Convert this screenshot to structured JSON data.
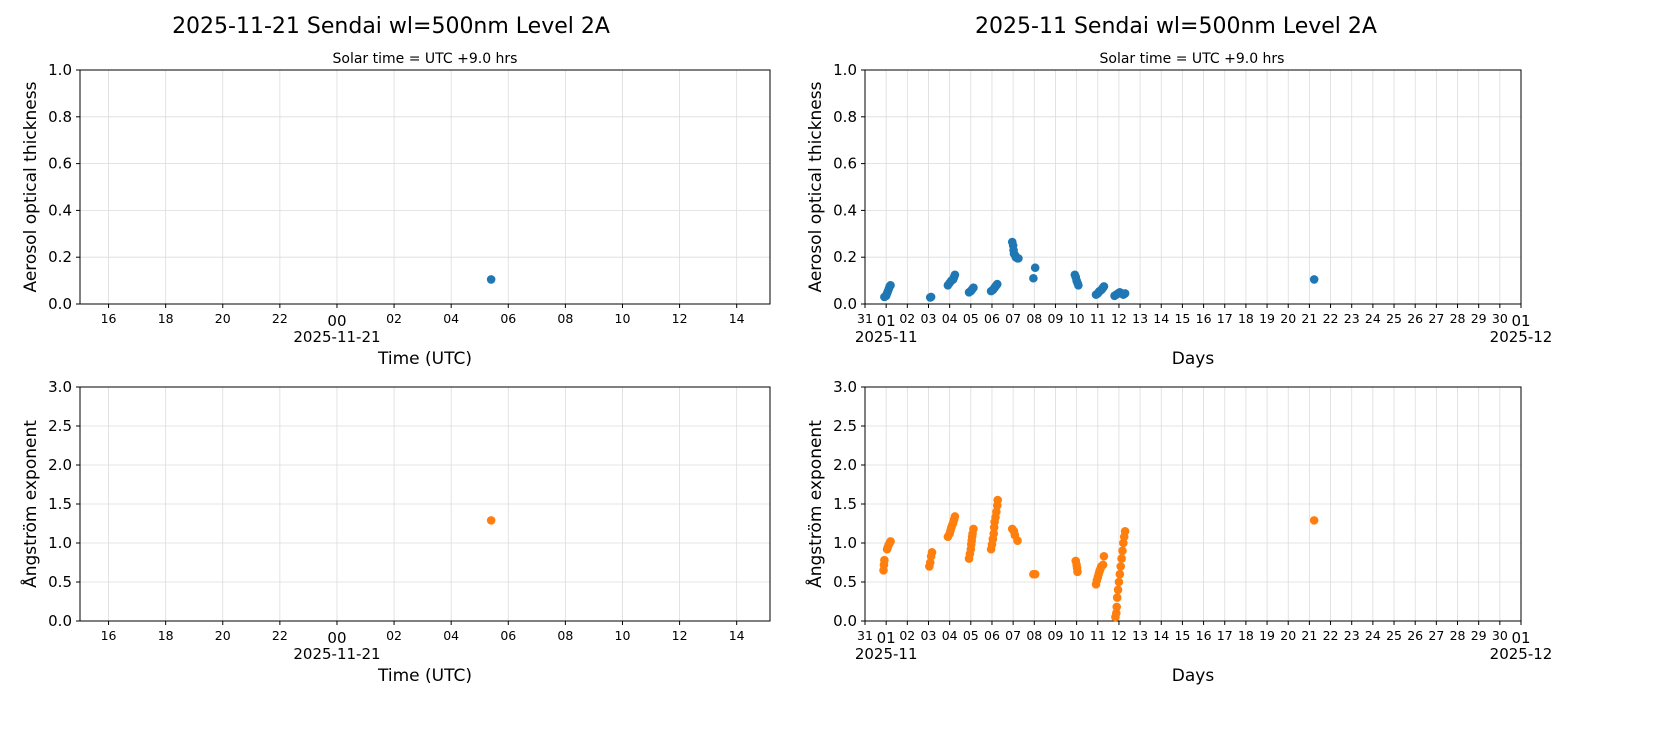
{
  "charts": [
    {
      "title": "2025-11-21  Sendai  wl=500nm  Level 2A",
      "subtitle": "Solar time = UTC +9.0 hrs"
    },
    {
      "title": "2025-11  Sendai  wl=500nm  Level 2A",
      "subtitle": "Solar time = UTC +9.0 hrs"
    }
  ],
  "chart_data": [
    {
      "type": "scatter",
      "panel": "daily-aot",
      "xlabel": "Time (UTC)",
      "ylabel": "Aerosol optical thickness",
      "xlim": [
        "2025-11-20T15:00",
        "2025-11-21T15:10"
      ],
      "ylim": [
        0,
        1.0
      ],
      "yticks": [
        "0.0",
        "0.2",
        "0.4",
        "0.6",
        "0.8",
        "1.0"
      ],
      "xticks": [
        {
          "t": "2025-11-20T16:00",
          "label": "16"
        },
        {
          "t": "2025-11-20T18:00",
          "label": "18"
        },
        {
          "t": "2025-11-20T20:00",
          "label": "20"
        },
        {
          "t": "2025-11-20T22:00",
          "label": "22"
        },
        {
          "t": "2025-11-21T00:00",
          "label": "00",
          "major": true,
          "sublabel": "2025-11-21"
        },
        {
          "t": "2025-11-21T02:00",
          "label": "02"
        },
        {
          "t": "2025-11-21T04:00",
          "label": "04"
        },
        {
          "t": "2025-11-21T06:00",
          "label": "06"
        },
        {
          "t": "2025-11-21T08:00",
          "label": "08"
        },
        {
          "t": "2025-11-21T10:00",
          "label": "10"
        },
        {
          "t": "2025-11-21T12:00",
          "label": "12"
        },
        {
          "t": "2025-11-21T14:00",
          "label": "14"
        }
      ],
      "grid": true,
      "color": "#1f77b4",
      "points": [
        [
          "2025-11-21T05:24",
          0.105
        ]
      ]
    },
    {
      "type": "scatter",
      "panel": "monthly-aot",
      "xlabel": "Days",
      "ylabel": "Aerosol optical thickness",
      "xlim": [
        "2025-10-31T00:00",
        "2025-12-01T00:00"
      ],
      "ylim": [
        0,
        1.0
      ],
      "yticks": [
        "0.0",
        "0.2",
        "0.4",
        "0.6",
        "0.8",
        "1.0"
      ],
      "grid": true,
      "color": "#1f77b4",
      "points": [
        [
          "2025-10-31T22:00",
          0.03
        ],
        [
          "2025-11-01T00:00",
          0.035
        ],
        [
          "2025-11-01T01:00",
          0.045
        ],
        [
          "2025-11-01T02:00",
          0.055
        ],
        [
          "2025-11-01T03:00",
          0.065
        ],
        [
          "2025-11-01T04:00",
          0.075
        ],
        [
          "2025-11-01T05:00",
          0.08
        ],
        [
          "2025-11-03T02:00",
          0.028
        ],
        [
          "2025-11-03T03:00",
          0.03
        ],
        [
          "2025-11-03T22:00",
          0.08
        ],
        [
          "2025-11-04T00:00",
          0.09
        ],
        [
          "2025-11-04T02:00",
          0.1
        ],
        [
          "2025-11-04T04:00",
          0.105
        ],
        [
          "2025-11-04T05:00",
          0.115
        ],
        [
          "2025-11-04T06:00",
          0.125
        ],
        [
          "2025-11-04T22:00",
          0.05
        ],
        [
          "2025-11-05T00:00",
          0.055
        ],
        [
          "2025-11-05T01:00",
          0.06
        ],
        [
          "2025-11-05T02:00",
          0.065
        ],
        [
          "2025-11-05T03:00",
          0.07
        ],
        [
          "2025-11-05T23:00",
          0.055
        ],
        [
          "2025-11-06T01:00",
          0.06
        ],
        [
          "2025-11-06T02:00",
          0.065
        ],
        [
          "2025-11-06T03:00",
          0.07
        ],
        [
          "2025-11-06T04:00",
          0.075
        ],
        [
          "2025-11-06T05:00",
          0.08
        ],
        [
          "2025-11-06T06:00",
          0.085
        ],
        [
          "2025-11-06T23:00",
          0.265
        ],
        [
          "2025-11-07T00:00",
          0.25
        ],
        [
          "2025-11-07T00:30",
          0.23
        ],
        [
          "2025-11-07T01:00",
          0.215
        ],
        [
          "2025-11-07T02:00",
          0.21
        ],
        [
          "2025-11-07T03:00",
          0.2
        ],
        [
          "2025-11-07T05:00",
          0.195
        ],
        [
          "2025-11-07T06:00",
          0.195
        ],
        [
          "2025-11-07T23:00",
          0.11
        ],
        [
          "2025-11-08T01:00",
          0.155
        ],
        [
          "2025-11-09T22:00",
          0.125
        ],
        [
          "2025-11-09T23:00",
          0.115
        ],
        [
          "2025-11-10T00:00",
          0.1
        ],
        [
          "2025-11-10T01:00",
          0.09
        ],
        [
          "2025-11-10T02:00",
          0.08
        ],
        [
          "2025-11-10T22:00",
          0.04
        ],
        [
          "2025-11-11T00:00",
          0.045
        ],
        [
          "2025-11-11T01:00",
          0.05
        ],
        [
          "2025-11-11T02:00",
          0.055
        ],
        [
          "2025-11-11T04:00",
          0.06
        ],
        [
          "2025-11-11T05:00",
          0.065
        ],
        [
          "2025-11-11T06:00",
          0.07
        ],
        [
          "2025-11-11T07:00",
          0.075
        ],
        [
          "2025-11-11T19:00",
          0.035
        ],
        [
          "2025-11-11T21:00",
          0.04
        ],
        [
          "2025-11-11T23:00",
          0.045
        ],
        [
          "2025-11-12T01:00",
          0.05
        ],
        [
          "2025-11-12T03:00",
          0.045
        ],
        [
          "2025-11-12T05:00",
          0.04
        ],
        [
          "2025-11-12T07:00",
          0.045
        ],
        [
          "2025-11-21T05:24",
          0.105
        ]
      ]
    },
    {
      "type": "scatter",
      "panel": "daily-ae",
      "xlabel": "Time (UTC)",
      "ylabel": "Ångström exponent",
      "xlim": [
        "2025-11-20T15:00",
        "2025-11-21T15:10"
      ],
      "ylim": [
        0,
        3.0
      ],
      "yticks": [
        "0.0",
        "0.5",
        "1.0",
        "1.5",
        "2.0",
        "2.5",
        "3.0"
      ],
      "grid": true,
      "color": "#ff7f0e",
      "points": [
        [
          "2025-11-21T05:24",
          1.29
        ]
      ]
    },
    {
      "type": "scatter",
      "panel": "monthly-ae",
      "xlabel": "Days",
      "ylabel": "Ångström exponent",
      "xlim": [
        "2025-10-31T00:00",
        "2025-12-01T00:00"
      ],
      "ylim": [
        0,
        3.0
      ],
      "yticks": [
        "0.0",
        "0.5",
        "1.0",
        "1.5",
        "2.0",
        "2.5",
        "3.0"
      ],
      "grid": true,
      "color": "#ff7f0e",
      "points": [
        [
          "2025-10-31T21:00",
          0.65
        ],
        [
          "2025-10-31T21:30",
          0.72
        ],
        [
          "2025-10-31T22:00",
          0.78
        ],
        [
          "2025-11-01T01:00",
          0.92
        ],
        [
          "2025-11-01T02:00",
          0.95
        ],
        [
          "2025-11-01T03:00",
          0.98
        ],
        [
          "2025-11-01T04:00",
          1.0
        ],
        [
          "2025-11-01T05:00",
          1.02
        ],
        [
          "2025-11-03T01:00",
          0.7
        ],
        [
          "2025-11-03T02:00",
          0.75
        ],
        [
          "2025-11-03T03:00",
          0.83
        ],
        [
          "2025-11-03T04:00",
          0.88
        ],
        [
          "2025-11-03T22:00",
          1.08
        ],
        [
          "2025-11-04T00:00",
          1.12
        ],
        [
          "2025-11-04T01:00",
          1.16
        ],
        [
          "2025-11-04T02:00",
          1.2
        ],
        [
          "2025-11-04T03:00",
          1.23
        ],
        [
          "2025-11-04T04:00",
          1.26
        ],
        [
          "2025-11-04T05:00",
          1.3
        ],
        [
          "2025-11-04T06:00",
          1.34
        ],
        [
          "2025-11-04T22:00",
          0.8
        ],
        [
          "2025-11-04T23:00",
          0.86
        ],
        [
          "2025-11-05T00:00",
          0.92
        ],
        [
          "2025-11-05T00:30",
          0.98
        ],
        [
          "2025-11-05T01:00",
          1.03
        ],
        [
          "2025-11-05T01:30",
          1.08
        ],
        [
          "2025-11-05T02:00",
          1.12
        ],
        [
          "2025-11-05T03:00",
          1.18
        ],
        [
          "2025-11-05T23:00",
          0.92
        ],
        [
          "2025-11-06T00:00",
          0.98
        ],
        [
          "2025-11-06T01:00",
          1.05
        ],
        [
          "2025-11-06T02:00",
          1.12
        ],
        [
          "2025-11-06T02:30",
          1.2
        ],
        [
          "2025-11-06T03:00",
          1.27
        ],
        [
          "2025-11-06T04:00",
          1.33
        ],
        [
          "2025-11-06T05:00",
          1.4
        ],
        [
          "2025-11-06T06:00",
          1.48
        ],
        [
          "2025-11-06T06:30",
          1.55
        ],
        [
          "2025-11-06T23:00",
          1.18
        ],
        [
          "2025-11-07T01:00",
          1.15
        ],
        [
          "2025-11-07T02:00",
          1.1
        ],
        [
          "2025-11-07T05:00",
          1.03
        ],
        [
          "2025-11-07T23:00",
          0.6
        ],
        [
          "2025-11-08T01:00",
          0.6
        ],
        [
          "2025-11-09T23:00",
          0.77
        ],
        [
          "2025-11-10T00:00",
          0.72
        ],
        [
          "2025-11-10T00:30",
          0.68
        ],
        [
          "2025-11-10T01:00",
          0.63
        ],
        [
          "2025-11-10T22:00",
          0.47
        ],
        [
          "2025-11-10T23:00",
          0.52
        ],
        [
          "2025-11-11T00:00",
          0.56
        ],
        [
          "2025-11-11T01:00",
          0.6
        ],
        [
          "2025-11-11T02:00",
          0.64
        ],
        [
          "2025-11-11T03:00",
          0.67
        ],
        [
          "2025-11-11T04:00",
          0.7
        ],
        [
          "2025-11-11T06:00",
          0.72
        ],
        [
          "2025-11-11T07:00",
          0.83
        ],
        [
          "2025-11-11T20:00",
          0.05
        ],
        [
          "2025-11-11T21:00",
          0.1
        ],
        [
          "2025-11-11T21:30",
          0.18
        ],
        [
          "2025-11-11T22:00",
          0.3
        ],
        [
          "2025-11-11T23:00",
          0.4
        ],
        [
          "2025-11-12T00:00",
          0.5
        ],
        [
          "2025-11-12T01:00",
          0.6
        ],
        [
          "2025-11-12T02:00",
          0.7
        ],
        [
          "2025-11-12T03:00",
          0.8
        ],
        [
          "2025-11-12T04:00",
          0.9
        ],
        [
          "2025-11-12T05:00",
          1.0
        ],
        [
          "2025-11-12T06:00",
          1.08
        ],
        [
          "2025-11-12T07:00",
          1.15
        ],
        [
          "2025-11-21T05:24",
          1.29
        ]
      ]
    }
  ],
  "monthly_xticks": {
    "first_label": "31",
    "labels": [
      "01",
      "02",
      "03",
      "04",
      "05",
      "06",
      "07",
      "08",
      "09",
      "10",
      "11",
      "12",
      "13",
      "14",
      "15",
      "16",
      "17",
      "18",
      "19",
      "20",
      "21",
      "22",
      "23",
      "24",
      "25",
      "26",
      "27",
      "28",
      "29",
      "30",
      "01"
    ],
    "major_sublabels": [
      "2025-11",
      "2025-12"
    ]
  }
}
